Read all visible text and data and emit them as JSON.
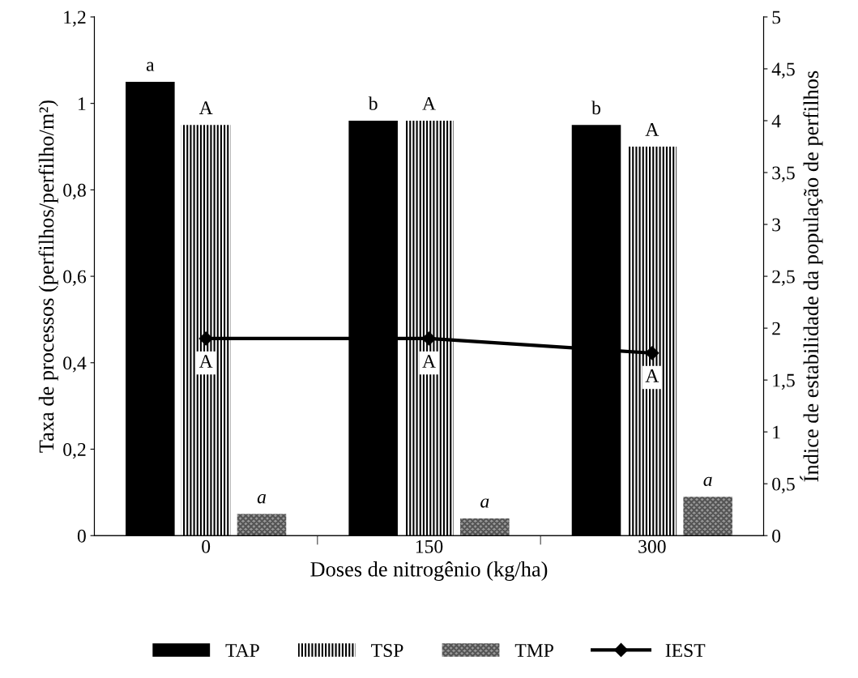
{
  "chart_data": {
    "type": "bar",
    "xlabel": "Doses de nitrogênio (kg/ha)",
    "ylabel": "Taxa de processos (perfilhos/perfilho/m²)",
    "y2label": "Índice de estabilidade da população de perfilhos",
    "categories": [
      "0",
      "150",
      "300"
    ],
    "series": [
      {
        "name": "TAP",
        "color": "#000000",
        "values": [
          1.05,
          0.96,
          0.95
        ],
        "value_labels": [
          "a",
          "b",
          "b"
        ]
      },
      {
        "name": "TSP",
        "color": "#000000",
        "values": [
          0.95,
          0.96,
          0.9
        ],
        "value_labels": [
          "A",
          "A",
          "A"
        ]
      },
      {
        "name": "TMP",
        "color": "#555555",
        "values": [
          0.05,
          0.04,
          0.09
        ],
        "value_labels": [
          "a",
          "a",
          "a"
        ]
      },
      {
        "name": "IEST",
        "color": "#000000",
        "type": "line",
        "axis": "y2",
        "marker": "diamond",
        "values": [
          1.9,
          1.9,
          1.76
        ],
        "value_labels": [
          "A",
          "A",
          "A"
        ]
      }
    ],
    "ylim": [
      0,
      1.2
    ],
    "yticks": [
      0,
      {
        "value": 0.2,
        "label": "0,2"
      },
      {
        "value": 0.4,
        "label": "0,4"
      },
      {
        "value": 0.6,
        "label": "0,6"
      },
      {
        "value": 0.8,
        "label": "0,8"
      },
      1,
      {
        "value": 1.2,
        "label": "1,2"
      }
    ],
    "y2lim": [
      0,
      5
    ],
    "y2ticks": [
      0,
      {
        "value": 0.5,
        "label": "0,5"
      },
      1,
      {
        "value": 1.5,
        "label": "1,5"
      },
      2,
      {
        "value": 2.5,
        "label": "2,5"
      },
      3,
      {
        "value": 3.5,
        "label": "3,5"
      },
      4,
      {
        "value": 4.5,
        "label": "4,5"
      },
      5
    ],
    "grid": false,
    "legend": "bottom"
  }
}
